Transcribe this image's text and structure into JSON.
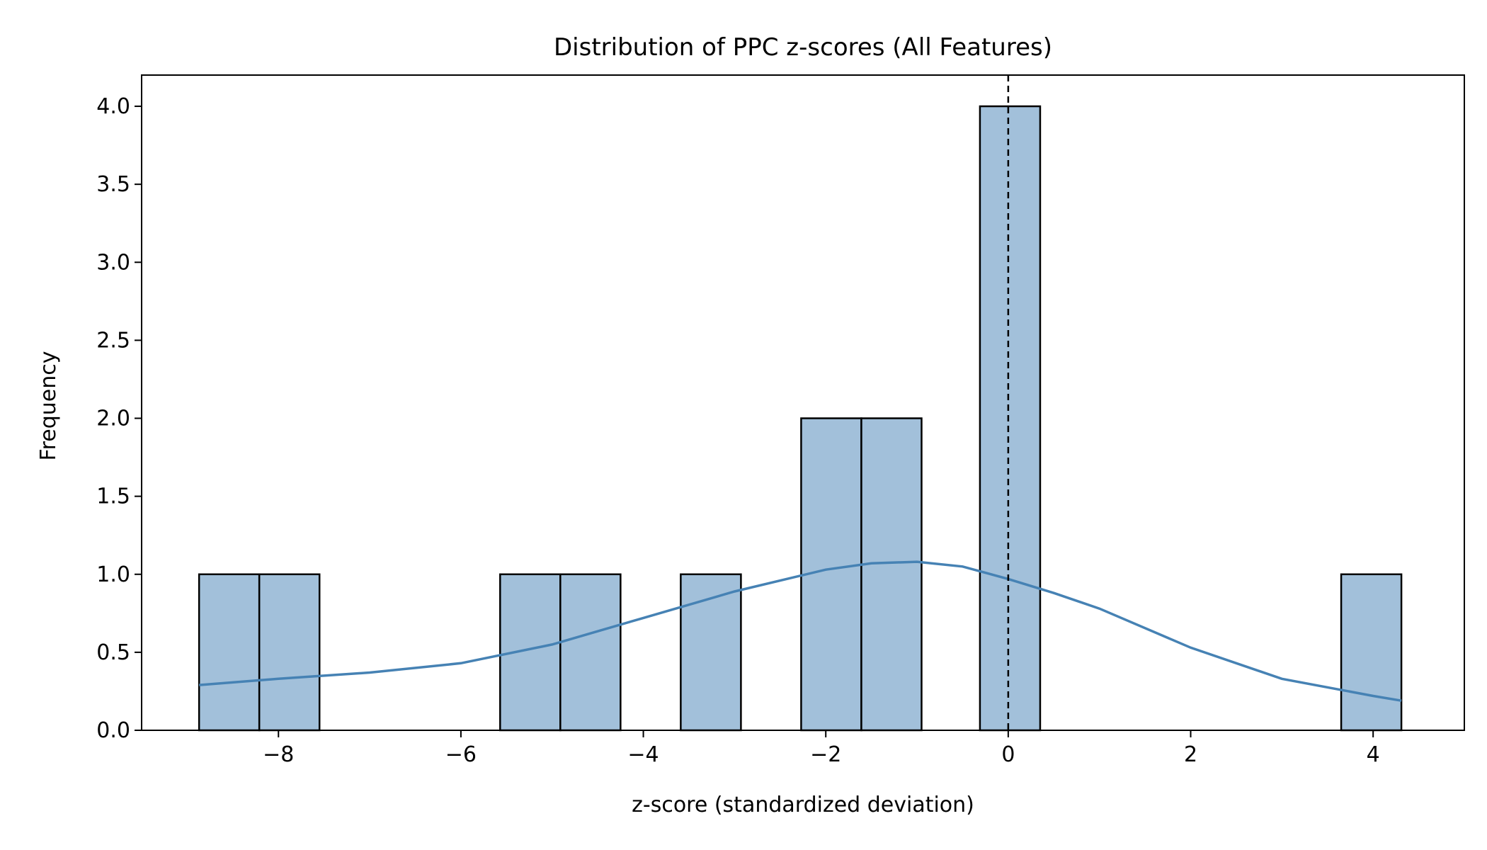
{
  "chart_data": {
    "type": "bar",
    "title": "Distribution of PPC z-scores (All Features)",
    "xlabel": "z-score (standardized deviation)",
    "ylabel": "Frequency",
    "xlim": [
      -9.5,
      5.0
    ],
    "ylim": [
      0,
      4.2
    ],
    "xticks": [
      -8,
      -6,
      -4,
      -2,
      0,
      2,
      4
    ],
    "xtick_labels": [
      "−8",
      "−6",
      "−4",
      "−2",
      "0",
      "2",
      "4"
    ],
    "yticks": [
      0,
      0.5,
      1,
      1.5,
      2,
      2.5,
      3,
      3.5,
      4
    ],
    "ytick_labels": [
      "0.0",
      "0.5",
      "1.0",
      "1.5",
      "2.0",
      "2.5",
      "3.0",
      "3.5",
      "4.0"
    ],
    "bins": [
      {
        "x0": -8.87,
        "x1": -8.21,
        "count": 1
      },
      {
        "x0": -8.21,
        "x1": -7.55,
        "count": 1
      },
      {
        "x0": -5.57,
        "x1": -4.91,
        "count": 1
      },
      {
        "x0": -4.91,
        "x1": -4.25,
        "count": 1
      },
      {
        "x0": -3.59,
        "x1": -2.93,
        "count": 1
      },
      {
        "x0": -2.27,
        "x1": -1.61,
        "count": 2
      },
      {
        "x0": -1.61,
        "x1": -0.95,
        "count": 2
      },
      {
        "x0": -0.31,
        "x1": 0.35,
        "count": 4
      },
      {
        "x0": 3.65,
        "x1": 4.31,
        "count": 1
      }
    ],
    "kde": {
      "x": [
        -8.87,
        -8.0,
        -7.0,
        -6.0,
        -5.0,
        -4.0,
        -3.0,
        -2.0,
        -1.5,
        -1.0,
        -0.5,
        0.0,
        0.5,
        1.0,
        2.0,
        3.0,
        4.0,
        4.31
      ],
      "y": [
        0.29,
        0.33,
        0.37,
        0.43,
        0.55,
        0.72,
        0.89,
        1.03,
        1.07,
        1.08,
        1.05,
        0.97,
        0.88,
        0.78,
        0.53,
        0.33,
        0.22,
        0.19
      ]
    },
    "reference_line": {
      "x": 0,
      "style": "dashed"
    },
    "bar_fill": "#a2c0da",
    "bar_edge": "#000000",
    "kde_color": "#4682b4",
    "grid": false,
    "legend": "none"
  }
}
